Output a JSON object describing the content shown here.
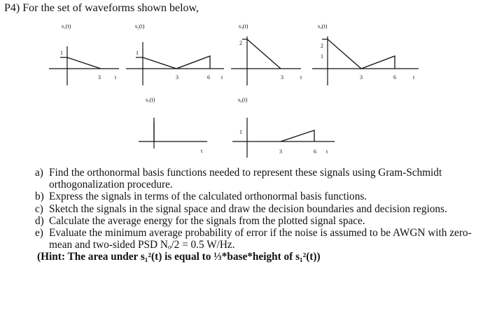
{
  "problem_title": "P4) For the set of waveforms shown below,",
  "waveforms": {
    "s1": {
      "label": "s₁(t)",
      "y_ticks": [
        "1"
      ],
      "x_ticks": [
        "3"
      ],
      "axis_label": "t"
    },
    "s2": {
      "label": "s₂(t)",
      "y_ticks": [
        "1"
      ],
      "x_ticks": [
        "3",
        "6"
      ],
      "axis_label": "t"
    },
    "s3": {
      "label": "s₃(t)",
      "y_ticks": [
        "2"
      ],
      "x_ticks": [
        "3"
      ],
      "axis_label": "t"
    },
    "s4": {
      "label": "s₄(t)",
      "y_ticks": [
        "2",
        "1"
      ],
      "x_ticks": [
        "3",
        "6"
      ],
      "axis_label": "t"
    },
    "s5": {
      "label": "s₅(t)",
      "y_ticks": [],
      "x_ticks": [],
      "axis_label": "t"
    },
    "s6": {
      "label": "s₆(t)",
      "y_ticks": [
        "1"
      ],
      "x_ticks": [
        "3",
        "6"
      ],
      "axis_label": "t"
    }
  },
  "questions": [
    {
      "label": "a)",
      "text": "Find the orthonormal basis functions needed to represent these signals using Gram-Schmidt orthogonalization procedure."
    },
    {
      "label": "b)",
      "text": "Express the signals in terms of the calculated orthonormal basis functions."
    },
    {
      "label": "c)",
      "text": "Sketch the signals in the signal space and draw the decision boundaries and decision regions."
    },
    {
      "label": "d)",
      "text": "Calculate the average energy for the signals from the plotted signal space."
    },
    {
      "label": "e)",
      "text": "Evaluate the minimum average probability of error if the noise is assumed to be AWGN with zero-mean and two-sided PSD Nₒ/2 = 0.5 W/Hz."
    }
  ],
  "hint": "(Hint: The area under s₁²(t) is equal to ⅓*base*height of s₁²(t))"
}
